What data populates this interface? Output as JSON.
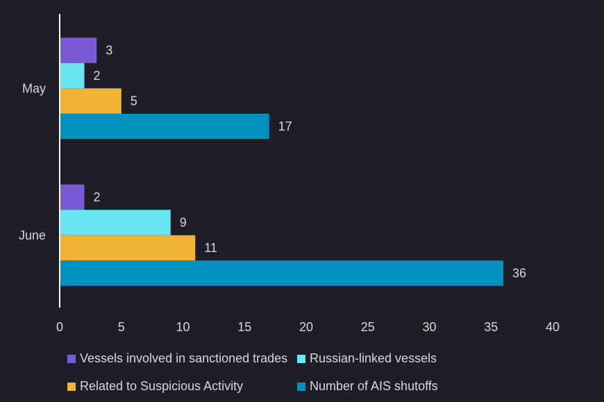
{
  "chart_data": {
    "type": "bar",
    "orientation": "horizontal",
    "title": "",
    "xlabel": "",
    "ylabel": "",
    "categories": [
      "May",
      "June"
    ],
    "series": [
      {
        "name": "Vessels involved in sanctioned trades",
        "color": "#7b5ad6",
        "values": [
          3,
          2
        ]
      },
      {
        "name": "Russian-linked vessels",
        "color": "#6ae4f0",
        "values": [
          2,
          9
        ]
      },
      {
        "name": "Related to Suspicious Activity",
        "color": "#f0b334",
        "values": [
          5,
          11
        ]
      },
      {
        "name": "Number of AIS shutoffs",
        "color": "#0090bd",
        "values": [
          17,
          36
        ]
      }
    ],
    "xlim": [
      0,
      40
    ],
    "xticks": [
      "0",
      "5",
      "10",
      "15",
      "20",
      "25",
      "30",
      "35",
      "40"
    ],
    "grid": false,
    "data_labels": true,
    "legend_position": "bottom"
  },
  "colors": {
    "background": "#1d1e27",
    "text": "#d8d8d8",
    "axis": "#ffffff"
  }
}
